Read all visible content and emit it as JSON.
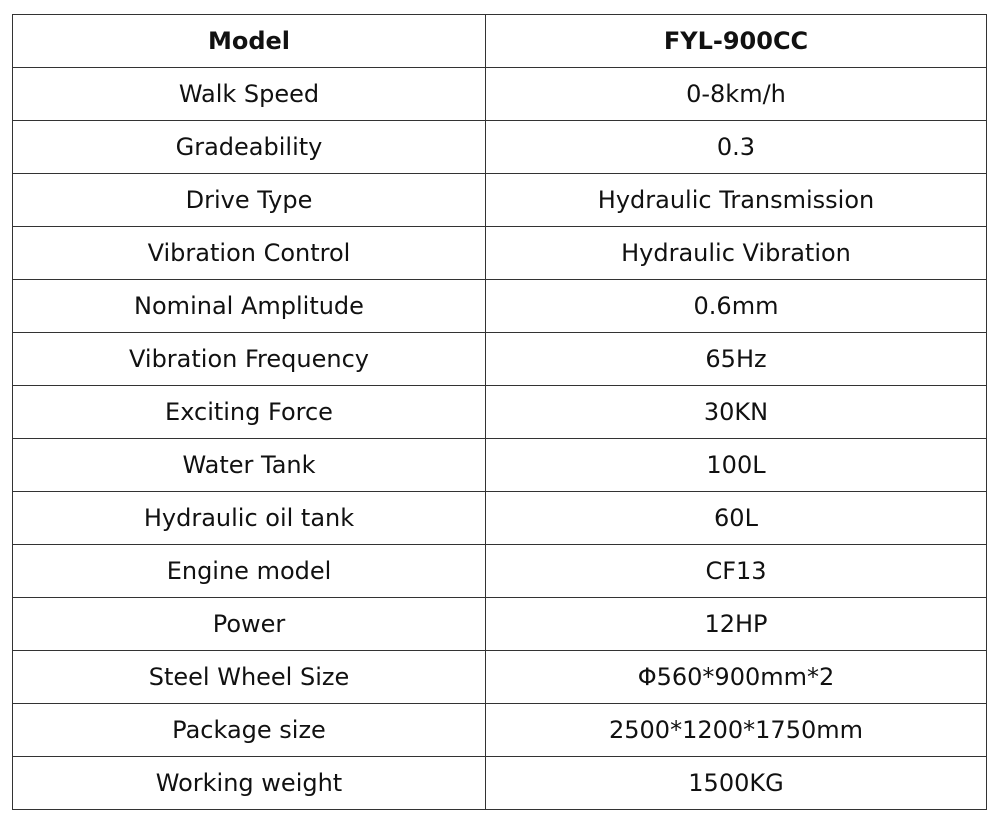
{
  "table": {
    "header": [
      "Model",
      "FYL-900CC"
    ],
    "rows": [
      [
        "Walk Speed",
        "0-8km/h"
      ],
      [
        "Gradeability",
        "0.3"
      ],
      [
        "Drive Type",
        "Hydraulic Transmission"
      ],
      [
        "Vibration Control",
        "Hydraulic Vibration"
      ],
      [
        "Nominal Amplitude",
        "0.6mm"
      ],
      [
        "Vibration Frequency",
        "65Hz"
      ],
      [
        "Exciting Force",
        "30KN"
      ],
      [
        "Water Tank",
        "100L"
      ],
      [
        "Hydraulic oil tank",
        "60L"
      ],
      [
        "Engine model",
        "CF13"
      ],
      [
        "Power",
        "12HP"
      ],
      [
        "Steel Wheel Size",
        "Φ560*900mm*2"
      ],
      [
        "Package size",
        "2500*1200*1750mm"
      ],
      [
        "Working weight",
        "1500KG"
      ]
    ]
  }
}
